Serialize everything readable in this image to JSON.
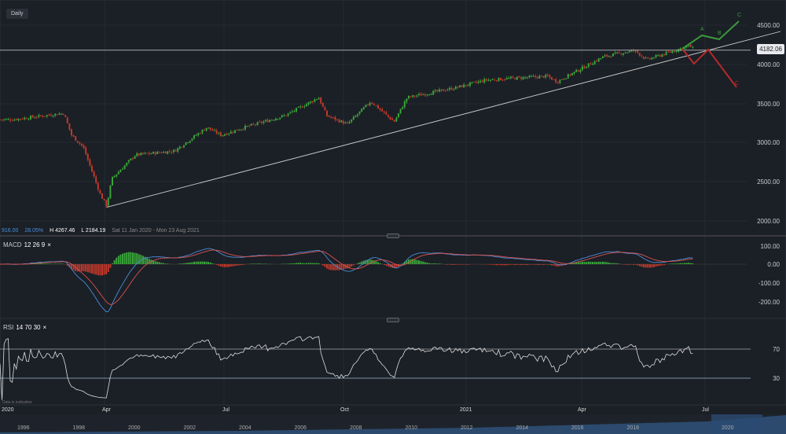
{
  "header": {
    "interval": "Daily",
    "current_price": "4182.06"
  },
  "stats": {
    "change": "916.00",
    "change_pct": "28.05%",
    "high": "H 4267.46",
    "low": "L 2184.19",
    "range": "Sat 11 Jan 2020 - Mon 23 Aug 2021"
  },
  "price_axis": [
    "4500.00",
    "4000.00",
    "3500.00",
    "3000.00",
    "2500.00",
    "2000.00"
  ],
  "macd": {
    "label": "MACD",
    "params": "12  26  9",
    "close": "×",
    "axis": [
      "100.00",
      "0.00",
      "-100.00",
      "-200.00"
    ]
  },
  "rsi": {
    "label": "RSI",
    "params": "14  70  30",
    "close": "×",
    "axis": [
      "70",
      "30"
    ]
  },
  "note": "Data is indicative",
  "time_axis": [
    "2020",
    "Apr",
    "Jul",
    "Oct",
    "2021",
    "Apr",
    "Jul"
  ],
  "navigator_years": [
    "1996",
    "1998",
    "2000",
    "2002",
    "2004",
    "2006",
    "2008",
    "2010",
    "2012",
    "2014",
    "2016",
    "2018",
    "2020"
  ],
  "chart_data": {
    "type": "candlestick",
    "title": "",
    "ylim": [
      1900,
      4650
    ],
    "colors": {
      "up": "#3aa53a",
      "down": "#c0392b",
      "projection_bull": "#3a9a3a",
      "projection_bear": "#b52a2a"
    },
    "close_path": [
      [
        "2020-01-11",
        3300
      ],
      [
        "2020-02-19",
        3380
      ],
      [
        "2020-02-25",
        3100
      ],
      [
        "2020-03-05",
        2950
      ],
      [
        "2020-03-18",
        2350
      ],
      [
        "2020-03-23",
        2200
      ],
      [
        "2020-03-27",
        2550
      ],
      [
        "2020-04-14",
        2850
      ],
      [
        "2020-05-14",
        2900
      ],
      [
        "2020-06-08",
        3200
      ],
      [
        "2020-06-19",
        3100
      ],
      [
        "2020-07-07",
        3200
      ],
      [
        "2020-08-07",
        3350
      ],
      [
        "2020-09-02",
        3580
      ],
      [
        "2020-09-08",
        3350
      ],
      [
        "2020-09-24",
        3240
      ],
      [
        "2020-10-12",
        3530
      ],
      [
        "2020-10-30",
        3270
      ],
      [
        "2020-11-09",
        3580
      ],
      [
        "2020-12-15",
        3700
      ],
      [
        "2021-01-08",
        3800
      ],
      [
        "2021-02-02",
        3830
      ],
      [
        "2021-02-25",
        3850
      ],
      [
        "2021-03-04",
        3780
      ],
      [
        "2021-04-09",
        4100
      ],
      [
        "2021-05-03",
        4180
      ],
      [
        "2021-05-12",
        4060
      ],
      [
        "2021-06-14",
        4240
      ],
      [
        "2021-06-18",
        4180
      ]
    ],
    "price_line": 4182.06,
    "trendline": [
      [
        "2020-03-23",
        2184.19
      ],
      [
        "2021-08-23",
        4420
      ]
    ],
    "projections": {
      "bullish": {
        "labels": [
          "A",
          "B",
          "C"
        ],
        "points": [
          4200,
          4370,
          4320,
          4550
        ]
      },
      "bearish": {
        "labels": [
          "C"
        ],
        "points": [
          4200,
          4010,
          4190,
          3710
        ]
      }
    },
    "macd_params": [
      12,
      26,
      9
    ],
    "rsi_params": [
      14,
      70,
      30
    ]
  }
}
